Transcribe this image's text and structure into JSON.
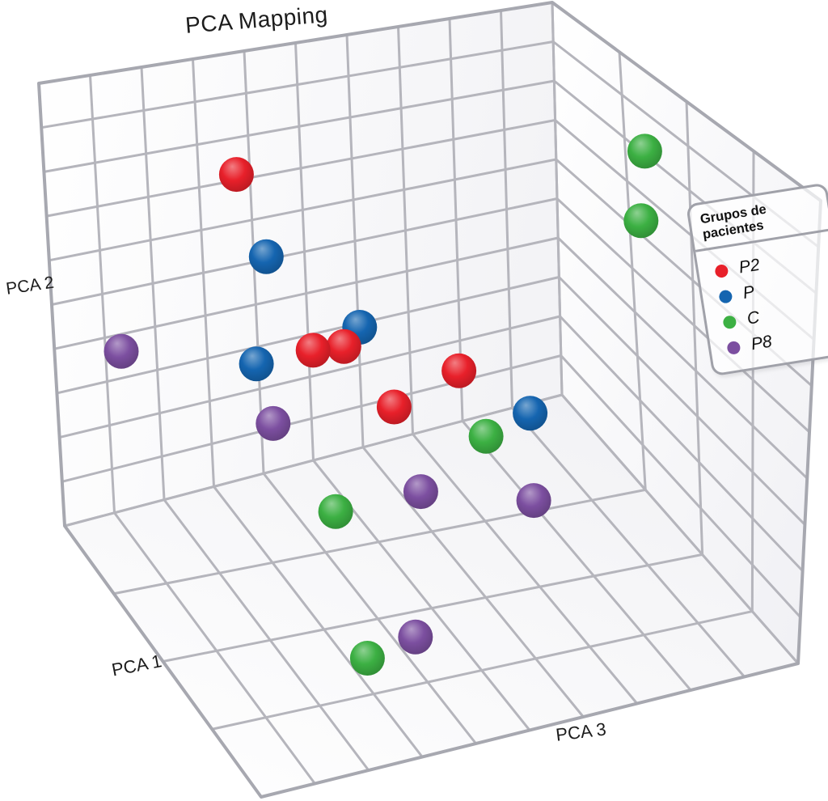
{
  "title": "PCA Mapping",
  "axes": {
    "x_label": "PCA 1",
    "y_label": "PCA 2",
    "z_label": "PCA 3"
  },
  "legend": {
    "title": "Grupos de pacientes",
    "items": [
      {
        "label": "P2",
        "color": "#e8202a"
      },
      {
        "label": "P",
        "color": "#1565b0"
      },
      {
        "label": "C",
        "color": "#3cb043"
      },
      {
        "label": "P8",
        "color": "#7c4fa0"
      }
    ]
  },
  "chart_data": {
    "type": "scatter",
    "projection": "3d",
    "title": "PCA Mapping",
    "xlabel": "PCA 1",
    "ylabel": "PCA 2",
    "zlabel": "PCA 3",
    "grid": true,
    "axis_divisions": {
      "pca1": 4,
      "pca2": 10,
      "pca3": 10
    },
    "axis_ranges": {
      "pca1": [
        0,
        4
      ],
      "pca2": [
        0,
        10
      ],
      "pca3": [
        0,
        10
      ]
    },
    "legend_position": "upper-right",
    "grid_color": "#b5b5bc",
    "series": [
      {
        "name": "P2",
        "color": "#e8202a",
        "points": [
          [
            2.2,
            9.7,
            1.5
          ],
          [
            2,
            5.9,
            2.8
          ],
          [
            2,
            5.85,
            3.4
          ],
          [
            2,
            4.8,
            5.65
          ],
          [
            2,
            4.3,
            4.4
          ]
        ]
      },
      {
        "name": "P",
        "color": "#1565b0",
        "points": [
          [
            2,
            8.1,
            1.85
          ],
          [
            2,
            5.85,
            1.7
          ],
          [
            2,
            6.2,
            3.7
          ],
          [
            2,
            3.5,
            7.05
          ]
        ]
      },
      {
        "name": "C",
        "color": "#3cb043",
        "points": [
          [
            2,
            9.0,
            9.2
          ],
          [
            2,
            7.4,
            9.15
          ],
          [
            2,
            3.2,
            6.2
          ],
          [
            2,
            2.3,
            3.3
          ],
          [
            0.8,
            1.0,
            2.7
          ]
        ]
      },
      {
        "name": "P8",
        "color": "#7c4fa0",
        "points": [
          [
            3.2,
            4.9,
            0.45
          ],
          [
            2,
            4.5,
            2.05
          ],
          [
            2,
            2.3,
            4.95
          ],
          [
            2,
            1.5,
            7.15
          ],
          [
            0.8,
            1.2,
            3.6
          ]
        ]
      }
    ]
  }
}
